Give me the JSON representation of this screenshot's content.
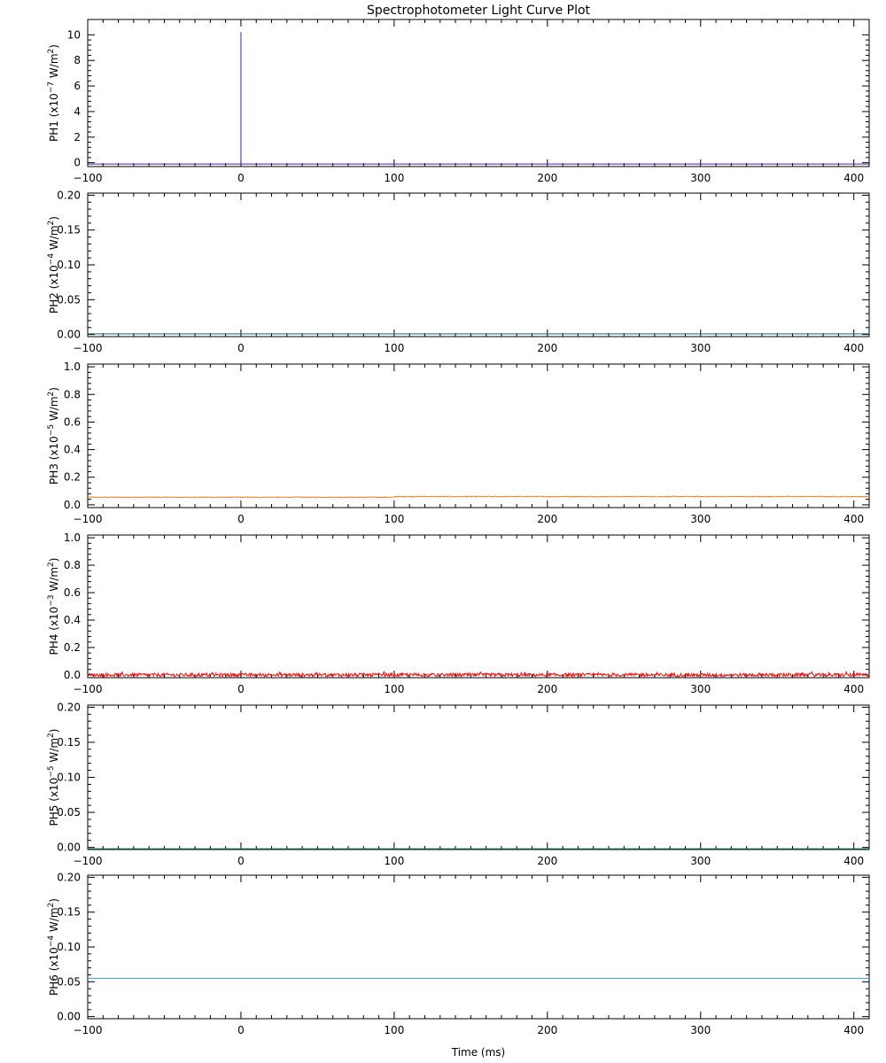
{
  "chart_data": {
    "type": "line",
    "title": "Spectrophotometer Light Curve Plot",
    "xlabel": "Time (ms)",
    "xlim": [
      -100,
      410
    ],
    "xticks": [
      -100,
      0,
      100,
      200,
      300,
      400
    ],
    "xtick_labels": [
      "−100",
      "0",
      "100",
      "200",
      "300",
      "400"
    ],
    "panels": [
      {
        "name": "PH1",
        "unit": "(x10",
        "exp": "−7",
        "unit_tail": " W/m",
        "ylim": [
          -0.3,
          11.2
        ],
        "yticks": [
          0,
          2,
          4,
          6,
          8,
          10
        ],
        "ytick_labels": [
          "0",
          "2",
          "4",
          "6",
          "8",
          "10"
        ],
        "color": "#4B1FA8",
        "series": {
          "baseline": -0.1,
          "spikes": [
            {
              "x": 0,
              "y": 10.2
            }
          ],
          "noise": 0
        }
      },
      {
        "name": "PH2",
        "unit": "(x10",
        "exp": "−4",
        "unit_tail": " W/m",
        "ylim": [
          -0.003,
          0.203
        ],
        "yticks": [
          0.0,
          0.05,
          0.1,
          0.15,
          0.2
        ],
        "ytick_labels": [
          "0.00",
          "0.05",
          "0.10",
          "0.15",
          "0.20"
        ],
        "color": "#1A5E7A",
        "series": {
          "baseline": 0.001,
          "spikes": [],
          "noise": 0
        }
      },
      {
        "name": "PH3",
        "unit": "(x10",
        "exp": "−5",
        "unit_tail": " W/m",
        "ylim": [
          -0.02,
          1.02
        ],
        "yticks": [
          0.0,
          0.2,
          0.4,
          0.6,
          0.8,
          1.0
        ],
        "ytick_labels": [
          "0.0",
          "0.2",
          "0.4",
          "0.6",
          "0.8",
          "1.0"
        ],
        "color": "#F08020",
        "series": {
          "baseline": 0.055,
          "step_at": 100,
          "baseline_after": 0.06,
          "spikes": [],
          "noise": 0.006
        }
      },
      {
        "name": "PH4",
        "unit": "(x10",
        "exp": "−3",
        "unit_tail": " W/m",
        "ylim": [
          -0.02,
          1.02
        ],
        "yticks": [
          0.0,
          0.2,
          0.4,
          0.6,
          0.8,
          1.0
        ],
        "ytick_labels": [
          "0.0",
          "0.2",
          "0.4",
          "0.6",
          "0.8",
          "1.0"
        ],
        "color": "#E81010",
        "series": {
          "baseline": 0.0,
          "spikes": [],
          "noise": 0.025
        }
      },
      {
        "name": "PH5",
        "unit": "(x10",
        "exp": "−5",
        "unit_tail": " W/m",
        "ylim": [
          -0.003,
          0.203
        ],
        "yticks": [
          0.0,
          0.05,
          0.1,
          0.15,
          0.2
        ],
        "ytick_labels": [
          "0.00",
          "0.05",
          "0.10",
          "0.15",
          "0.20"
        ],
        "color": "#1A7A6A",
        "series": {
          "baseline": -0.002,
          "spikes": [],
          "noise": 0
        }
      },
      {
        "name": "PH6",
        "unit": "(x10",
        "exp": "−4",
        "unit_tail": " W/m",
        "ylim": [
          -0.003,
          0.203
        ],
        "yticks": [
          0.0,
          0.05,
          0.1,
          0.15,
          0.2
        ],
        "ytick_labels": [
          "0.00",
          "0.05",
          "0.10",
          "0.15",
          "0.20"
        ],
        "color": "#3A9AD8",
        "series": {
          "baseline": 0.055,
          "spikes": [],
          "noise": 0
        }
      }
    ]
  }
}
